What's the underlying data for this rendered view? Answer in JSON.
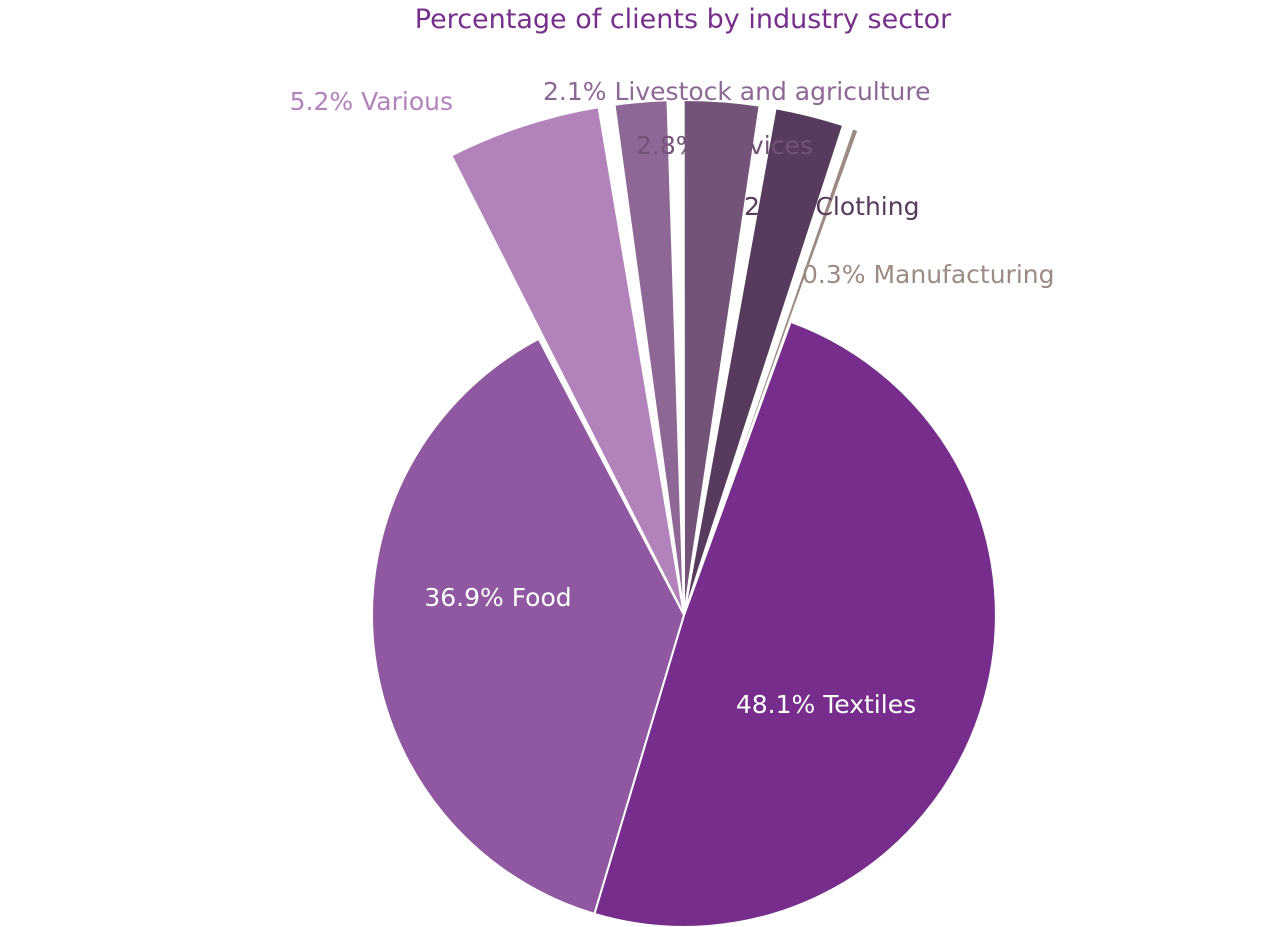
{
  "chart_data": {
    "type": "pie",
    "title": "Percentage of clients by industry sector",
    "unit": "%",
    "slices": [
      {
        "label": "Textiles",
        "value": 48.1,
        "display": "48.1% Textiles",
        "color": "#772d8b",
        "label_color": "#ffffff",
        "exploded": false,
        "label_inside": true
      },
      {
        "label": "Food",
        "value": 36.9,
        "display": "36.9% Food",
        "color": "#8f58a0",
        "label_color": "#ffffff",
        "exploded": false,
        "label_inside": true
      },
      {
        "label": "Various",
        "value": 5.2,
        "display": "5.2% Various",
        "color": "#b283bb",
        "label_color": "#b283bb",
        "exploded": true,
        "label_inside": false
      },
      {
        "label": "Livestock and agriculture",
        "value": 2.1,
        "display": "2.1% Livestock and agriculture",
        "color": "#8e6895",
        "label_color": "#8e6895",
        "exploded": true,
        "label_inside": false
      },
      {
        "label": "Services",
        "value": 2.8,
        "display": "2.8% Services",
        "color": "#735377",
        "label_color": "#735377",
        "exploded": true,
        "label_inside": false
      },
      {
        "label": "Clothing",
        "value": 2.6,
        "display": "2.6% Clothing",
        "color": "#573b5d",
        "label_color": "#573b5d",
        "exploded": true,
        "label_inside": false
      },
      {
        "label": "Manufacturing",
        "value": 0.3,
        "display": "0.3% Manufacturing",
        "color": "#9b8b82",
        "label_color": "#9b8b82",
        "exploded": true,
        "label_inside": false
      }
    ]
  }
}
